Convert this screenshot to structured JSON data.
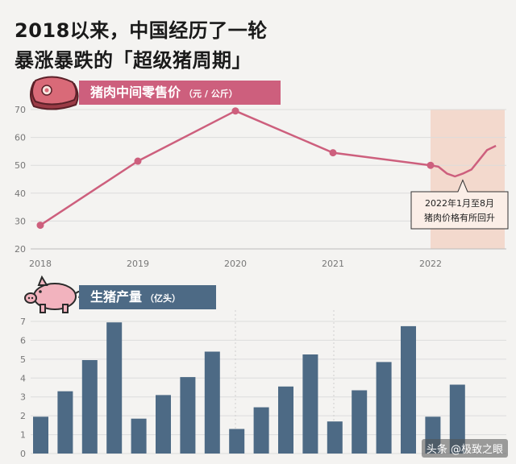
{
  "title": {
    "line1": "2018以来，中国经历了一轮",
    "line2": "暴涨暴跌的「超级猪周期」"
  },
  "colors": {
    "price_line": "#cd5f7d",
    "bar": "#4d6a85",
    "highlight": "#f3d9cd",
    "meat_icon": "#d96a78",
    "pig_icon": "#f2b3be"
  },
  "icons": {
    "meat": "meat-steak-icon",
    "pig": "pig-icon"
  },
  "watermark": "头条 @极致之眼",
  "chart_data": [
    {
      "type": "line",
      "title": "猪肉中间零售价",
      "unit": "（元 / 公斤）",
      "x_ticks": [
        "2018",
        "2019",
        "2020",
        "2021",
        "2022"
      ],
      "x": [
        2018.0,
        2019.0,
        2020.0,
        2021.0,
        2022.0,
        2022.08,
        2022.17,
        2022.25,
        2022.33,
        2022.42,
        2022.5,
        2022.58,
        2022.67
      ],
      "y": [
        28.5,
        51.5,
        69.5,
        54.5,
        50.0,
        49.5,
        47.0,
        46.0,
        47.0,
        48.5,
        52.0,
        55.5,
        57.0
      ],
      "markers": [
        2018.0,
        2019.0,
        2020.0,
        2021.0,
        2022.0
      ],
      "ylim": [
        20,
        70
      ],
      "y_ticks": [
        20,
        30,
        40,
        50,
        60,
        70
      ],
      "grid": true,
      "highlight_range": [
        2022.0,
        2022.75
      ],
      "annotation": {
        "line1": "2022年1月至8月",
        "line2": "猪肉价格有所回升"
      }
    },
    {
      "type": "bar",
      "title": "生猪产量",
      "unit": "（亿头）",
      "values": [
        1.95,
        3.3,
        4.95,
        6.95,
        1.85,
        3.1,
        4.05,
        5.4,
        1.3,
        2.45,
        3.55,
        5.25,
        1.7,
        3.35,
        4.85,
        6.75,
        1.95,
        3.65
      ],
      "ylim": [
        0,
        7
      ],
      "y_ticks": [
        0,
        1,
        2,
        3,
        4,
        5,
        6,
        7
      ],
      "grid": true
    }
  ]
}
